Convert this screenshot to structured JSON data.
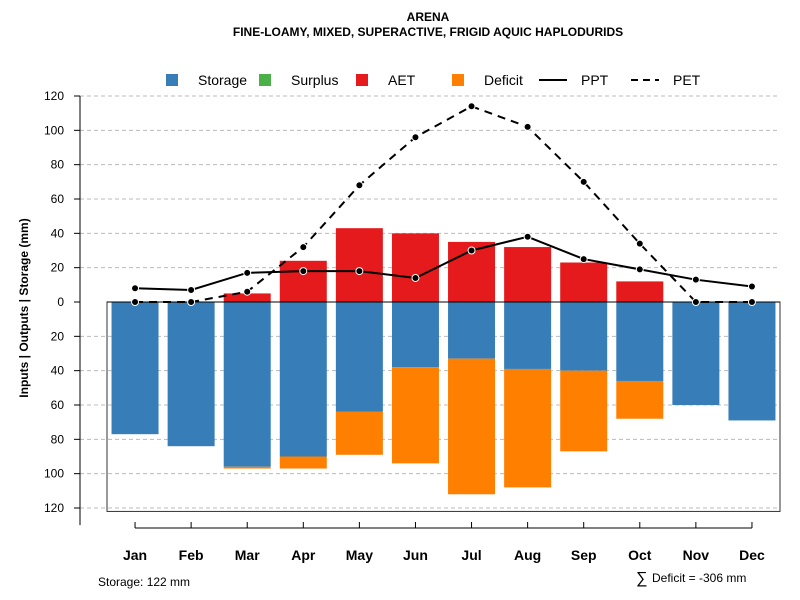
{
  "chart_data": {
    "type": "bar",
    "title": "ARENA",
    "subtitle": "FINE-LOAMY, MIXED, SUPERACTIVE, FRIGID AQUIC HAPLODURIDS",
    "ylabel": "Inputs | Outputs | Storage    (mm)",
    "categories": [
      "Jan",
      "Feb",
      "Mar",
      "Apr",
      "May",
      "Jun",
      "Jul",
      "Aug",
      "Sep",
      "Oct",
      "Nov",
      "Dec"
    ],
    "ylim": [
      -122,
      120
    ],
    "yticks": [
      120,
      100,
      80,
      60,
      40,
      20,
      0,
      -20,
      -40,
      -60,
      -80,
      -100,
      -120
    ],
    "ytick_labels": [
      "120",
      "100",
      "80",
      "60",
      "40",
      "20",
      "0",
      "20",
      "40",
      "60",
      "80",
      "100",
      "120"
    ],
    "legend": [
      {
        "name": "Storage",
        "kind": "box",
        "color": "#377EB8"
      },
      {
        "name": "Surplus",
        "kind": "box",
        "color": "#4DAF4A"
      },
      {
        "name": "AET",
        "kind": "box",
        "color": "#E41A1C"
      },
      {
        "name": "Deficit",
        "kind": "box",
        "color": "#FF7F00"
      },
      {
        "name": "PPT",
        "kind": "solid",
        "color": "#000000"
      },
      {
        "name": "PET",
        "kind": "dashed",
        "color": "#000000"
      }
    ],
    "series": [
      {
        "name": "AET",
        "color": "#E41A1C",
        "values": [
          0,
          0,
          5,
          24,
          43,
          40,
          35,
          32,
          23,
          12,
          0,
          0
        ]
      },
      {
        "name": "Storage",
        "color": "#377EB8",
        "values": [
          77,
          84,
          96,
          90,
          64,
          38,
          33,
          39,
          40,
          46,
          60,
          69
        ]
      },
      {
        "name": "Deficit",
        "color": "#FF7F00",
        "values": [
          0,
          0,
          1,
          7,
          25,
          56,
          79,
          69,
          47,
          22,
          0,
          0
        ]
      },
      {
        "name": "PPT",
        "color": "#000000",
        "values": [
          8,
          7,
          17,
          18,
          18,
          14,
          30,
          38,
          25,
          19,
          13,
          9
        ]
      },
      {
        "name": "PET",
        "color": "#000000",
        "values": [
          0,
          0,
          6,
          32,
          68,
          96,
          114,
          102,
          70,
          34,
          0,
          0
        ]
      }
    ],
    "storage_capacity": 122,
    "grid": true,
    "legend_position": "top"
  },
  "footer": {
    "storage_label": "Storage: 122 mm",
    "deficit_symbol": "∑",
    "deficit_label": "Deficit = -306 mm"
  }
}
